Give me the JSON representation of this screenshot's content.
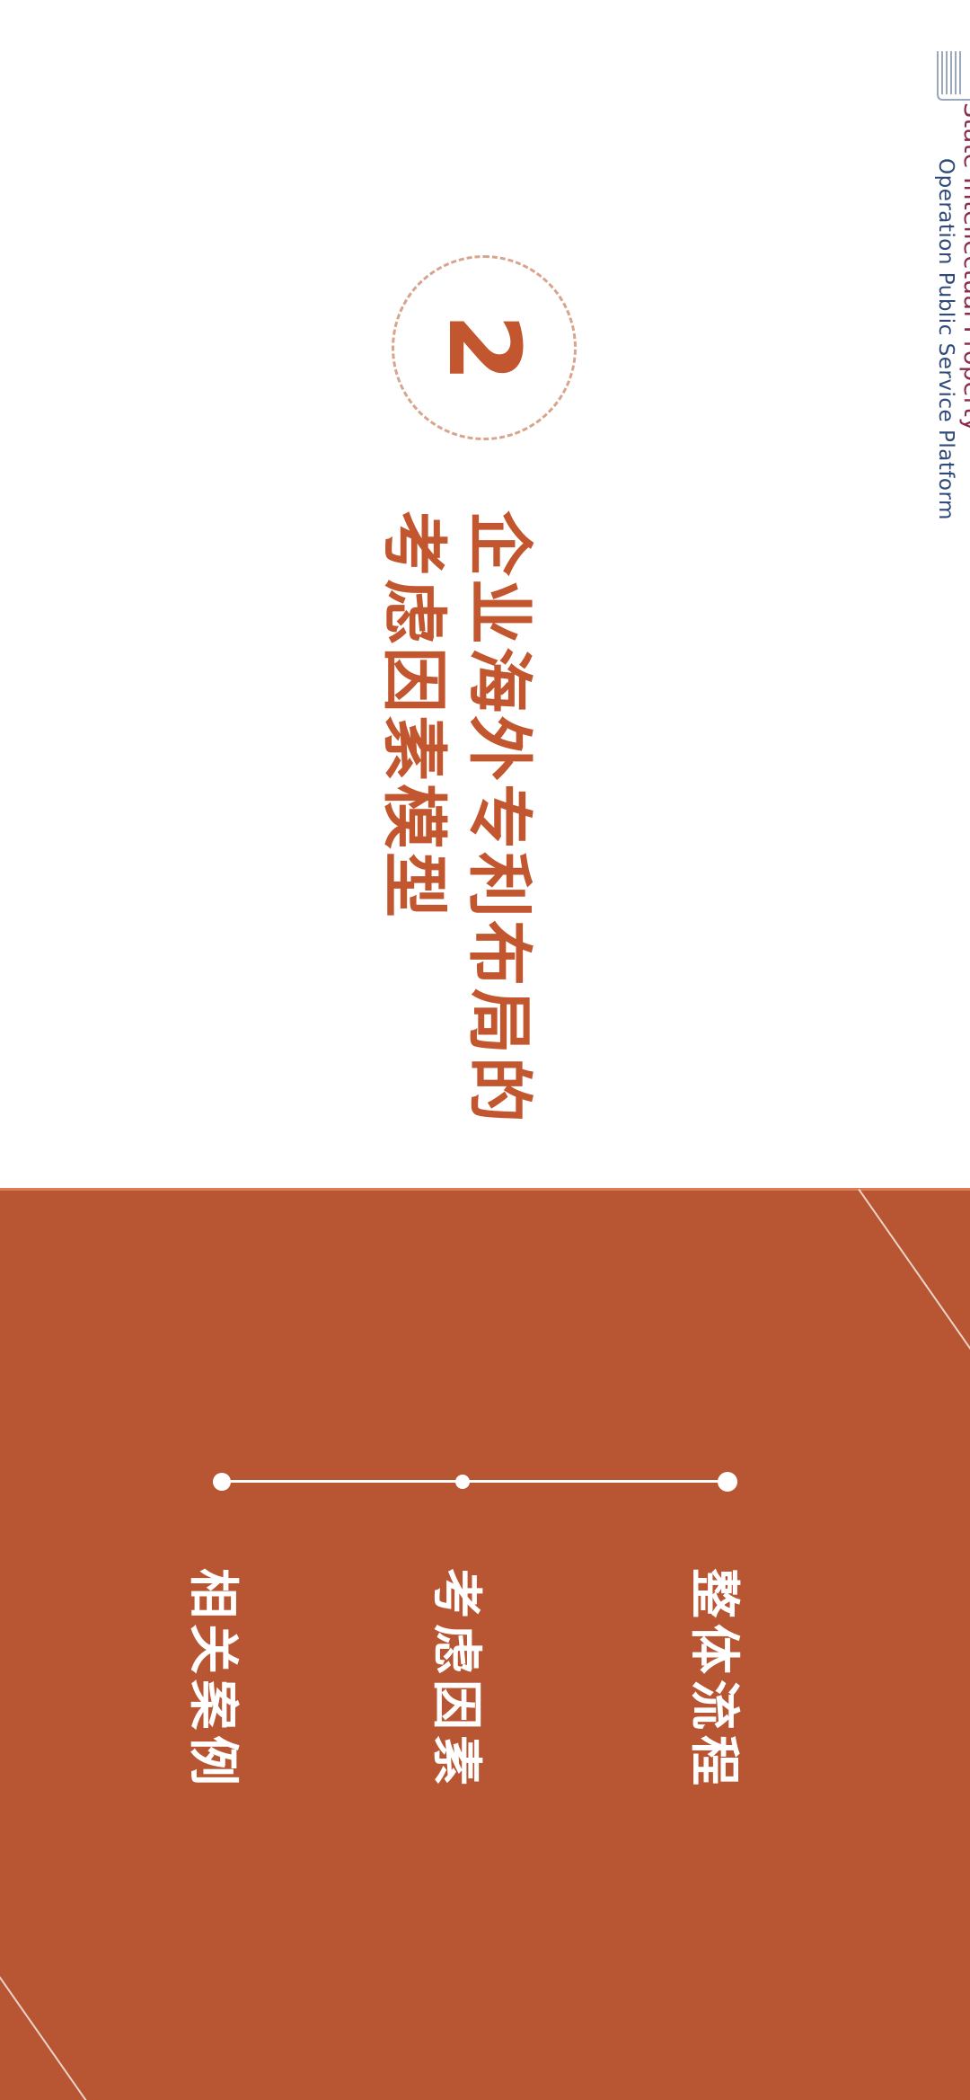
{
  "header": {
    "org_line_1": "State Intellectual Property",
    "org_line_2": "Operation Public Service Platform"
  },
  "section": {
    "number": "2",
    "title_line_1": "企业海外专利布局的",
    "title_line_2": "考虑因素模型"
  },
  "nav": {
    "items": [
      {
        "label": "整体流程"
      },
      {
        "label": "考虑因素"
      },
      {
        "label": "相关案例"
      }
    ]
  },
  "colors": {
    "accent": "#c2562f",
    "panel": "#b85532",
    "logo_blue": "#2f4a7a",
    "logo_red": "#8a2d4a"
  }
}
